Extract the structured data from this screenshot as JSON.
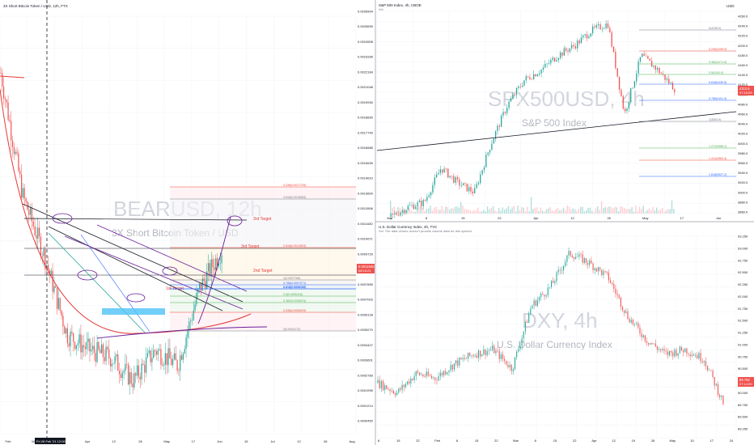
{
  "colors": {
    "up": "#26a69a",
    "down": "#ef5350",
    "price_tag": "#ef5350",
    "annotation_purple": "#6a1b9a",
    "annotation_red": "#e53935",
    "fib_blue": "#2962ff",
    "fib_green": "#4caf50",
    "fib_red": "#f44336",
    "fib_gray": "#787b86",
    "teal_line": "#26a69a",
    "box": "#4fc3f7",
    "watermark": "#d1d4dc"
  },
  "panels": {
    "bear": {
      "header": "3X Short Bitcoin Token / USD, 12h, FTX",
      "watermark_symbol": "BEARUSD, 12h",
      "watermark_desc": "3X Short Bitcoin Token / USD",
      "x_ticks": [
        "Feb",
        "Mar",
        "15",
        "Apr",
        "12",
        "26",
        "May",
        "17",
        "Jun",
        "15",
        "Jul",
        "12",
        "26",
        "Aug"
      ],
      "cursor_label": "Fri 26 Feb '21  12:00",
      "price_label": "0.0011920",
      "price_sub": "08:15:21",
      "y_ticks": [
        "0.0026904",
        "0.0025699",
        "0.0024508",
        "0.0023336",
        "0.0022184",
        "0.0021048",
        "0.0019930",
        "0.0018830",
        "0.0017749",
        "0.0016685",
        "0.0015639",
        "0.0014610",
        "0.0013600",
        "0.0012606",
        "0.0011630",
        "0.0010671",
        "0.0009729",
        "0.0008803",
        "0.0007895",
        "0.0007003",
        "0.0006128",
        "0.0005270",
        "0.0004427",
        "0.0003601",
        "0.0002789",
        "0.0001995",
        "0.0001214",
        "0.0000450"
      ],
      "targets": [
        "3rd Target",
        "3rd Target",
        "2nd Target",
        "1st Target"
      ],
      "fib_levels": [
        {
          "label": "4.236(0.0017729)",
          "color": "fib_red"
        },
        {
          "label": "3.618(0.0015565)",
          "color": "fib_gray"
        },
        {
          "label": "2.618(0.0012503)",
          "color": "fib_red"
        },
        {
          "label": "1.618(0.0009243)",
          "color": "fib_blue"
        },
        {
          "label": "1(0.0007768)",
          "color": "fib_gray"
        },
        {
          "label": "0.786(0.0007071)",
          "color": "fib_blue"
        },
        {
          "label": "0.618(0.0006700)",
          "color": "fib_blue"
        },
        {
          "label": "0.5(0.0006118)",
          "color": "fib_green"
        },
        {
          "label": "0.382(0.0005875)",
          "color": "fib_green"
        },
        {
          "label": "0.236(0.0005029)",
          "color": "fib_red"
        },
        {
          "label": "0(0.0004173)",
          "color": "fib_gray"
        }
      ]
    },
    "spx": {
      "header": "S&P 500 Index, 4h, CBOE",
      "sub_header": "Vol",
      "currency": "USD",
      "watermark_symbol": "SPX500USD, 4h",
      "watermark_desc": "S&P 500 Index",
      "x_ticks": [
        "Mar",
        "8",
        "15",
        "22",
        "Apr",
        "12",
        "26",
        "May",
        "17",
        "Jun"
      ],
      "price_label": "4112.6",
      "price_sub": "07:15:09",
      "y_ticks": [
        "4260.0",
        "4240.0",
        "4220.0",
        "4200.0",
        "4180.0",
        "4160.0",
        "4140.0",
        "4120.0",
        "4100.0",
        "4080.0",
        "4060.0",
        "4040.0",
        "4020.0",
        "4000.0",
        "3980.0",
        "3960.0",
        "3940.0",
        "3920.0",
        "3900.0",
        "3880.0",
        "3860.0"
      ],
      "fib_levels": [
        {
          "label": "0(4238.0)",
          "color": "fib_gray"
        },
        {
          "label": "0.236(4196.9)",
          "color": "fib_red"
        },
        {
          "label": "0.382(4171.5)",
          "color": "fib_green"
        },
        {
          "label": "0.5(4151.0)",
          "color": "fib_green"
        },
        {
          "label": "0.618(4130.5)",
          "color": "fib_blue"
        },
        {
          "label": "0.786(4101.3)",
          "color": "fib_blue"
        },
        {
          "label": "1(4063.9)",
          "color": "fib_gray"
        },
        {
          "label": "1.272(3988.2)",
          "color": "fib_green"
        },
        {
          "label": "1.414(3963.4)",
          "color": "fib_red"
        },
        {
          "label": "1.618(3927.2)",
          "color": "fib_blue"
        }
      ]
    },
    "dxy": {
      "header": "U.S. Dollar Currency Index, 4h, TVC",
      "notice": "Vol: The data vendor doesn't provide volume data for this symbol.",
      "watermark_symbol": "DXY, 4h",
      "watermark_desc": "U.S. Dollar Currency Index",
      "x_ticks": [
        "8",
        "15",
        "22",
        "Feb",
        "8",
        "15",
        "22",
        "Mar",
        "8",
        "15",
        "22",
        "Apr",
        "12",
        "19",
        "26",
        "May",
        "10",
        "17",
        "24"
      ],
      "price_label": "89.792",
      "price_sub": "07:14:00",
      "y_ticks": [
        "93.250",
        "93.000",
        "92.750",
        "92.500",
        "92.250",
        "92.000",
        "91.750",
        "91.500",
        "91.250",
        "91.000",
        "90.750",
        "90.500",
        "90.250",
        "90.000",
        "89.750",
        "89.500",
        "89.250"
      ]
    }
  },
  "chart_data": [
    {
      "type": "line",
      "title": "BEARUSD, 12h",
      "x": [
        "Feb",
        "Mar",
        "15",
        "Apr",
        "12",
        "26",
        "May",
        "17"
      ],
      "series": [
        {
          "name": "BEARUSD",
          "values": [
            0.0022,
            0.0011,
            0.0005,
            0.00045,
            0.0003,
            0.0005,
            0.0004,
            0.0009
          ]
        }
      ],
      "ylim": [
        4e-05,
        0.0027
      ]
    },
    {
      "type": "line",
      "title": "SPX500USD, 4h",
      "x": [
        "Mar",
        "8",
        "15",
        "22",
        "Apr",
        "12",
        "26",
        "May",
        "17"
      ],
      "series": [
        {
          "name": "SPX500USD",
          "values": [
            3850,
            3880,
            3950,
            3920,
            4000,
            4130,
            4180,
            4230,
            4112
          ]
        }
      ],
      "ylim": [
        3860,
        4260
      ]
    },
    {
      "type": "line",
      "title": "DXY, 4h",
      "x": [
        "8",
        "22",
        "Feb",
        "15",
        "Mar",
        "22",
        "Apr",
        "19",
        "May",
        "24"
      ],
      "series": [
        {
          "name": "DXY",
          "values": [
            90.2,
            90.4,
            90.6,
            90.9,
            91.8,
            92.9,
            92.4,
            91.1,
            90.9,
            89.8
          ]
        }
      ],
      "ylim": [
        89.25,
        93.25
      ]
    }
  ]
}
